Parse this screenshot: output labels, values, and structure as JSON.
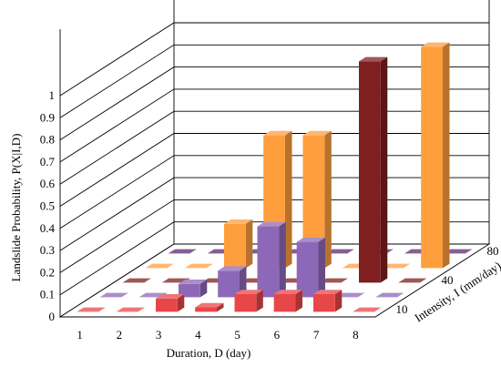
{
  "chart_data": {
    "type": "bar",
    "subtype": "3d-bar",
    "title": "",
    "xlabel": "Duration, D (day)",
    "ylabel": "Landslide Probability, P(X|I,D)",
    "zlabel": "Intensity, I (mm/day)",
    "categories": [
      "1",
      "2",
      "3",
      "4",
      "5",
      "6",
      "7",
      "8"
    ],
    "y_ticks": [
      "0",
      "0.1",
      "0.2",
      "0.3",
      "0.4",
      "0.5",
      "0.6",
      "0.7",
      "0.8",
      "0.9",
      "1"
    ],
    "z_tick_labels": [
      "10",
      "40",
      "80"
    ],
    "ylim": [
      0,
      1
    ],
    "grid": true,
    "legend": "none",
    "series": [
      {
        "color": "#e8474a",
        "values": [
          0.0,
          0.0,
          0.06,
          0.02,
          0.08,
          0.08,
          0.08,
          0.0
        ]
      },
      {
        "color": "#8e68b8",
        "values": [
          0.0,
          0.0,
          0.06,
          0.12,
          0.32,
          0.25,
          0.0,
          0.0
        ]
      },
      {
        "color": "#7f1f1f",
        "values": [
          0.0,
          0.0,
          0.0,
          0.0,
          0.0,
          0.0,
          1.0,
          0.0
        ]
      },
      {
        "color": "#ff9e3d",
        "values": [
          0.0,
          0.0,
          0.2,
          0.6,
          0.6,
          0.0,
          0.0,
          1.0
        ]
      },
      {
        "color": "#5b2a6e",
        "values": [
          0.0,
          0.0,
          0.0,
          0.0,
          0.0,
          0.0,
          0.0,
          0.0
        ]
      }
    ]
  }
}
